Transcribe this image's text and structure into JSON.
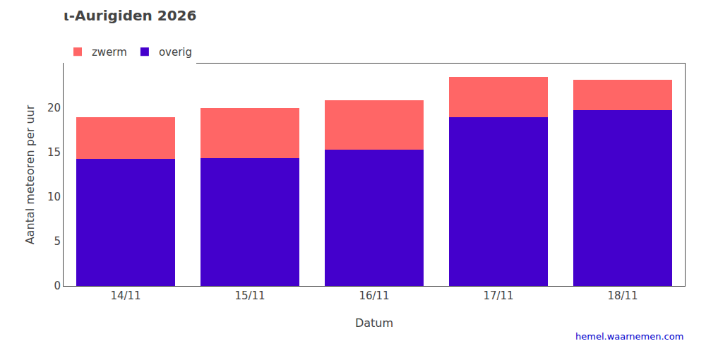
{
  "chart_data": {
    "type": "bar",
    "stacked": true,
    "title": "ι-Aurigiden 2026",
    "x_label": "Datum",
    "y_label": "Aantal meteoren per uur",
    "categories": [
      "14/11",
      "15/11",
      "16/11",
      "17/11",
      "18/11"
    ],
    "series": [
      {
        "name": "overig",
        "color": "#4400CC",
        "values": [
          14.3,
          14.4,
          15.3,
          19.0,
          19.8
        ]
      },
      {
        "name": "zwerm",
        "color": "#FF6666",
        "values": [
          4.7,
          5.6,
          5.6,
          4.5,
          3.4
        ]
      }
    ],
    "ylim": [
      0,
      25
    ],
    "yticks": [
      0,
      5,
      10,
      15,
      20
    ],
    "grid": false,
    "legend": "upper left",
    "annotations": [
      {
        "text": "hemel.waarnemen.com",
        "color": "#0000CC"
      }
    ]
  }
}
